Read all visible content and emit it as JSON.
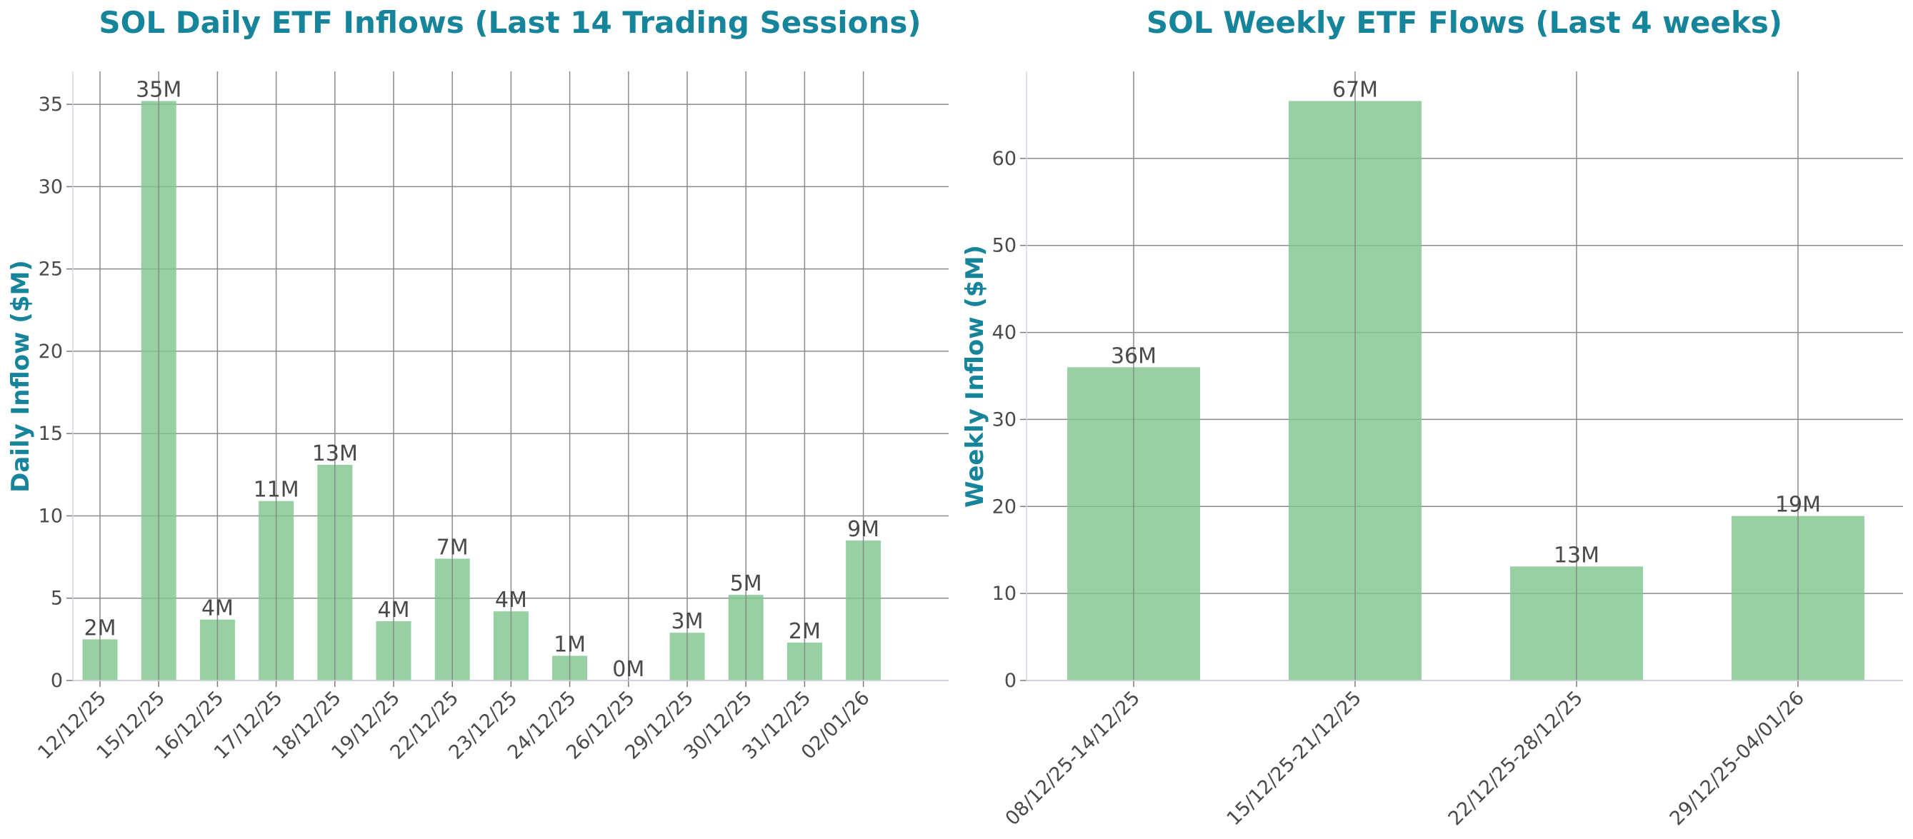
{
  "chart_data": [
    {
      "type": "bar",
      "title": "SOL Daily ETF Inflows (Last 14 Trading Sessions)",
      "xlabel": "",
      "ylabel": "Daily Inflow ($M)",
      "categories": [
        "12/12/25",
        "15/12/25",
        "16/12/25",
        "17/12/25",
        "18/12/25",
        "19/12/25",
        "22/12/25",
        "23/12/25",
        "24/12/25",
        "26/12/25",
        "29/12/25",
        "30/12/25",
        "31/12/25",
        "02/01/26"
      ],
      "values": [
        2.5,
        35.2,
        3.7,
        10.9,
        13.1,
        3.6,
        7.4,
        4.2,
        1.5,
        0.0,
        2.9,
        5.2,
        2.3,
        8.5
      ],
      "labels": [
        "2M",
        "35M",
        "4M",
        "11M",
        "13M",
        "4M",
        "7M",
        "4M",
        "1M",
        "0M",
        "3M",
        "5M",
        "2M",
        "9M"
      ],
      "yticks": [
        0,
        5,
        10,
        15,
        20,
        25,
        30,
        35
      ],
      "ylim": [
        0,
        37
      ],
      "grid": true,
      "bar_color": "#7fc68f"
    },
    {
      "type": "bar",
      "title": "SOL Weekly ETF Flows (Last 4 weeks)",
      "xlabel": "",
      "ylabel": "Weekly Inflow ($M)",
      "categories": [
        "08/12/25-14/12/25",
        "15/12/25-21/12/25",
        "22/12/25-28/12/25",
        "29/12/25-04/01/26"
      ],
      "values": [
        36.0,
        66.6,
        13.1,
        18.9
      ],
      "labels": [
        "36M",
        "67M",
        "13M",
        "19M"
      ],
      "yticks": [
        0,
        10,
        20,
        30,
        40,
        50,
        60
      ],
      "ylim": [
        0,
        70
      ],
      "grid": true,
      "bar_color": "#7fc68f"
    }
  ]
}
